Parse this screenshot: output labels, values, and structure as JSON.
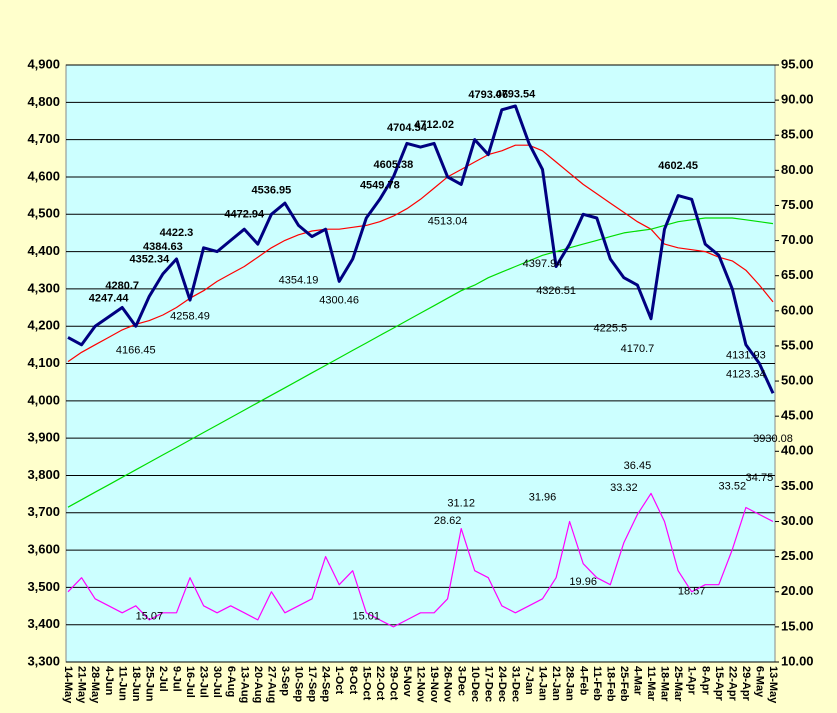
{
  "chart_data": {
    "type": "line",
    "categories": [
      "14-May",
      "21-May",
      "28-May",
      "4-Jun",
      "11-Jun",
      "18-Jun",
      "25-Jun",
      "2-Jul",
      "9-Jul",
      "16-Jul",
      "23-Jul",
      "30-Jul",
      "6-Aug",
      "13-Aug",
      "20-Aug",
      "27-Aug",
      "3-Sep",
      "10-Sep",
      "17-Sep",
      "24-Sep",
      "1-Oct",
      "8-Oct",
      "15-Oct",
      "22-Oct",
      "29-Oct",
      "5-Nov",
      "12-Nov",
      "19-Nov",
      "26-Nov",
      "3-Dec",
      "10-Dec",
      "17-Dec",
      "24-Dec",
      "31-Dec",
      "7-Jan",
      "14-Jan",
      "21-Jan",
      "28-Jan",
      "4-Feb",
      "11-Feb",
      "18-Feb",
      "25-Feb",
      "4-Mar",
      "11-Mar",
      "18-Mar",
      "25-Mar",
      "1-Apr",
      "8-Apr",
      "15-Apr",
      "22-Apr",
      "29-Apr",
      "6-May",
      "13-May"
    ],
    "series": [
      {
        "color": "#ff0000",
        "values": [
          4105,
          4130,
          4150,
          4170,
          4190,
          4205,
          4215,
          4230,
          4250,
          4275,
          4295,
          4320,
          4340,
          4360,
          4385,
          4410,
          4430,
          4445,
          4455,
          4460,
          4460,
          4465,
          4470,
          4480,
          4495,
          4515,
          4540,
          4570,
          4600,
          4620,
          4640,
          4660,
          4670,
          4685,
          4685,
          4670,
          4640,
          4610,
          4580,
          4555,
          4530,
          4505,
          4480,
          4460,
          4420,
          4410,
          4405,
          4400,
          4385,
          4375,
          4350,
          4310,
          4265
        ]
      },
      {
        "color": "#00dd00",
        "values": [
          3715,
          3735,
          3755,
          3775,
          3795,
          3815,
          3835,
          3855,
          3875,
          3895,
          3915,
          3935,
          3955,
          3975,
          3995,
          4015,
          4035,
          4055,
          4075,
          4095,
          4115,
          4135,
          4155,
          4175,
          4195,
          4215,
          4235,
          4255,
          4275,
          4295,
          4310,
          4330,
          4345,
          4360,
          4375,
          4390,
          4400,
          4410,
          4420,
          4430,
          4440,
          4450,
          4455,
          4460,
          4470,
          4480,
          4485,
          4490,
          4490,
          4490,
          4485,
          4480,
          4475
        ]
      },
      {
        "color": "#ff00ff",
        "axis": "y2",
        "values": [
          20,
          22,
          19,
          18,
          17,
          18,
          16,
          17,
          17,
          22,
          18,
          17,
          18,
          17,
          16,
          20,
          17,
          18,
          19,
          25,
          21,
          23,
          17,
          16,
          15,
          16,
          17,
          17,
          19,
          29,
          23,
          22,
          18,
          17,
          18,
          19,
          22,
          30,
          24,
          22,
          21,
          27,
          31,
          34,
          30,
          23,
          20,
          21,
          21,
          26,
          32,
          31,
          30
        ]
      },
      {
        "color": "#000080",
        "values": [
          4170,
          4150,
          4200,
          4225,
          4250,
          4200,
          4280,
          4340,
          4380,
          4270,
          4410,
          4400,
          4430,
          4460,
          4420,
          4500,
          4530,
          4470,
          4440,
          4460,
          4320,
          4380,
          4490,
          4540,
          4600,
          4690,
          4680,
          4690,
          4600,
          4580,
          4700,
          4660,
          4780,
          4790,
          4690,
          4620,
          4360,
          4420,
          4500,
          4490,
          4380,
          4330,
          4310,
          4220,
          4460,
          4550,
          4540,
          4420,
          4390,
          4300,
          4150,
          4100,
          4020
        ]
      }
    ],
    "highs": [
      {
        "category": "4-Jun",
        "value": 4247.44
      },
      {
        "category": "11-Jun",
        "value": 4280.7
      },
      {
        "category": "25-Jun",
        "value": 4352.34
      },
      {
        "category": "2-Jul",
        "value": 4384.63
      },
      {
        "category": "9-Jul",
        "value": 4422.3
      },
      {
        "category": "13-Aug",
        "value": 4472.94
      },
      {
        "category": "27-Aug",
        "value": 4536.95
      },
      {
        "category": "22-Oct",
        "value": 4549.78
      },
      {
        "category": "29-Oct",
        "value": 4605.38
      },
      {
        "category": "5-Nov",
        "value": 4704.54
      },
      {
        "category": "19-Nov",
        "value": 4712.02
      },
      {
        "category": "17-Dec",
        "value": 4793.06
      },
      {
        "category": "31-Dec",
        "value": 4793.54
      },
      {
        "category": "25-Mar",
        "value": 4602.45
      }
    ],
    "lows": [
      {
        "category": "18-Jun",
        "value": 4166.45
      },
      {
        "category": "16-Jul",
        "value": 4258.49
      },
      {
        "category": "10-Sep",
        "value": 4354.19
      },
      {
        "category": "1-Oct",
        "value": 4300.46
      },
      {
        "category": "26-Nov",
        "value": 4513.04
      },
      {
        "category": "14-Jan",
        "value": 4397.94
      },
      {
        "category": "21-Jan",
        "value": 4326.51
      },
      {
        "category": "18-Feb",
        "value": 4225.5
      },
      {
        "category": "4-Mar",
        "value": 4170.7
      },
      {
        "category": "29-Apr",
        "value": 4131.93
      },
      {
        "category": "29-Apr",
        "value": 4123.34
      },
      {
        "category": "13-May",
        "value": 3930.08
      }
    ],
    "y2_labels": [
      {
        "category": "25-Jun",
        "value": 15.07
      },
      {
        "category": "15-Oct",
        "value": 15.01
      },
      {
        "category": "26-Nov",
        "value": 28.62
      },
      {
        "category": "3-Dec",
        "value": 31.12
      },
      {
        "category": "14-Jan",
        "value": 31.96
      },
      {
        "category": "4-Feb",
        "value": 19.96
      },
      {
        "category": "25-Feb",
        "value": 33.32
      },
      {
        "category": "4-Mar",
        "value": 36.45
      },
      {
        "category": "1-Apr",
        "value": 18.57
      },
      {
        "category": "22-Apr",
        "value": 33.52
      },
      {
        "category": "6-May",
        "value": 34.75
      }
    ],
    "ylim": [
      3300,
      4900
    ],
    "yticks": [
      {
        "value": 3300,
        "label": "3,300"
      },
      {
        "value": 3400,
        "label": "3,400"
      },
      {
        "value": 3500,
        "label": "3,500"
      },
      {
        "value": 3600,
        "label": "3,600"
      },
      {
        "value": 3700,
        "label": "3,700"
      },
      {
        "value": 3800,
        "label": "3,800"
      },
      {
        "value": 3900,
        "label": "3,900"
      },
      {
        "value": 4000,
        "label": "4,000"
      },
      {
        "value": 4100,
        "label": "4,100"
      },
      {
        "value": 4200,
        "label": "4,200"
      },
      {
        "value": 4300,
        "label": "4,300"
      },
      {
        "value": 4400,
        "label": "4,400"
      },
      {
        "value": 4500,
        "label": "4,500"
      },
      {
        "value": 4600,
        "label": "4,600"
      },
      {
        "value": 4700,
        "label": "4,700"
      },
      {
        "value": 4800,
        "label": "4,800"
      },
      {
        "value": 4900,
        "label": "4,900"
      }
    ],
    "y2lim": [
      10,
      95
    ],
    "y2ticks": [
      {
        "value": 10,
        "label": "10.00"
      },
      {
        "value": 15,
        "label": "15.00"
      },
      {
        "value": 20,
        "label": "20.00"
      },
      {
        "value": 25,
        "label": "25.00"
      },
      {
        "value": 30,
        "label": "30.00"
      },
      {
        "value": 35,
        "label": "35.00"
      },
      {
        "value": 40,
        "label": "40.00"
      },
      {
        "value": 45,
        "label": "45.00"
      },
      {
        "value": 50,
        "label": "50.00"
      },
      {
        "value": 55,
        "label": "55.00"
      },
      {
        "value": 60,
        "label": "60.00"
      },
      {
        "value": 65,
        "label": "65.00"
      },
      {
        "value": 70,
        "label": "70.00"
      },
      {
        "value": 75,
        "label": "75.00"
      },
      {
        "value": 80,
        "label": "80.00"
      },
      {
        "value": 85,
        "label": "85.00"
      },
      {
        "value": 90,
        "label": "90.00"
      },
      {
        "value": 95,
        "label": "95.00"
      }
    ],
    "grid": true
  }
}
